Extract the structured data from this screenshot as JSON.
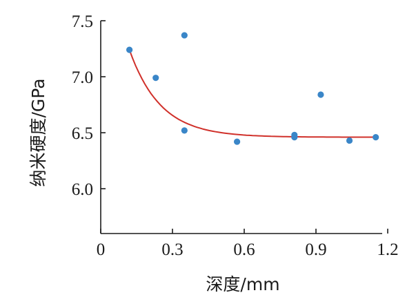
{
  "chart_data": {
    "type": "scatter",
    "xlabel": "深度/mm",
    "ylabel": "纳米硬度/GPa",
    "xlim": [
      0,
      1.2
    ],
    "ylim": [
      5.6,
      7.5
    ],
    "x_ticks": [
      "0",
      "0.3",
      "0.6",
      "0.9",
      "1.2"
    ],
    "y_ticks": [
      "6.0",
      "6.5",
      "7.0",
      "7.5"
    ],
    "grid": false,
    "legend": "none",
    "points": [
      {
        "x": 0.12,
        "y": 7.24
      },
      {
        "x": 0.23,
        "y": 6.99
      },
      {
        "x": 0.35,
        "y": 7.37
      },
      {
        "x": 0.35,
        "y": 6.52
      },
      {
        "x": 0.57,
        "y": 6.42
      },
      {
        "x": 0.81,
        "y": 6.48
      },
      {
        "x": 0.81,
        "y": 6.46
      },
      {
        "x": 0.92,
        "y": 6.84
      },
      {
        "x": 1.04,
        "y": 6.43
      },
      {
        "x": 1.15,
        "y": 6.46
      }
    ],
    "fit": {
      "type": "exponential-decay",
      "x_range": [
        0.12,
        1.15
      ],
      "y0": 6.46,
      "a": 0.78,
      "x0": 0.12,
      "t": 0.13
    },
    "colors": {
      "points": "#3a86c8",
      "fit_line": "#d0302a",
      "axis": "#1a1a1a"
    }
  }
}
